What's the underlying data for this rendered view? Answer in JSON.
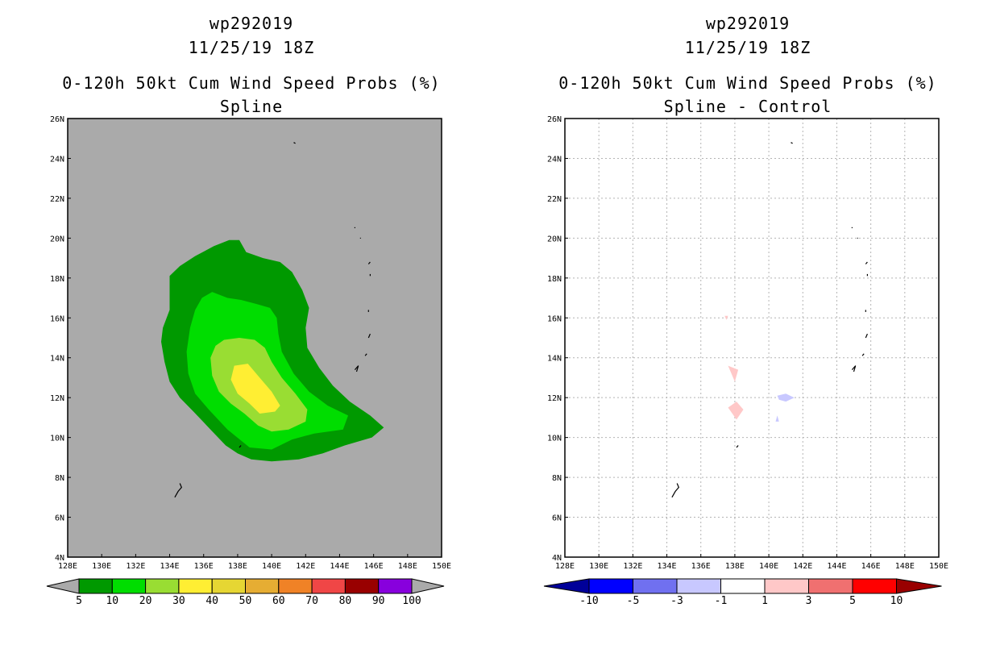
{
  "panels": [
    {
      "storm_id": "wp292019",
      "datetime": "11/25/19 18Z",
      "title": "0-120h 50kt Cum Wind Speed Probs (%)",
      "subtitle": "Spline"
    },
    {
      "storm_id": "wp292019",
      "datetime": "11/25/19 18Z",
      "title": "0-120h 50kt Cum Wind Speed Probs (%)",
      "subtitle": "Spline - Control"
    }
  ],
  "colors": {
    "background_land_sea": "#aaaaaa",
    "frame": "#000000",
    "grid": "#b4b4b4"
  },
  "chart_data": [
    {
      "type": "contour",
      "title": "0-120h 50kt Cum Wind Speed Probs (%)",
      "subtitle": "Spline",
      "xlim": [
        128,
        150
      ],
      "ylim": [
        4,
        26
      ],
      "x_ticks": [
        128,
        130,
        132,
        134,
        136,
        138,
        140,
        142,
        144,
        146,
        148,
        150
      ],
      "x_tick_labels": [
        "128E",
        "130E",
        "132E",
        "134E",
        "136E",
        "138E",
        "140E",
        "142E",
        "144E",
        "146E",
        "148E",
        "150E"
      ],
      "y_ticks": [
        4,
        6,
        8,
        10,
        12,
        14,
        16,
        18,
        20,
        22,
        24,
        26
      ],
      "y_tick_labels": [
        "4N",
        "6N",
        "8N",
        "10N",
        "12N",
        "14N",
        "16N",
        "18N",
        "20N",
        "22N",
        "24N",
        "26N"
      ],
      "grid": false,
      "contours": [
        {
          "level": 5,
          "color": "#009900",
          "lonlat": [
            [
              138.1,
              19.9
            ],
            [
              138.5,
              19.3
            ],
            [
              139.5,
              19.0
            ],
            [
              140.5,
              18.8
            ],
            [
              141.2,
              18.3
            ],
            [
              141.8,
              17.4
            ],
            [
              142.2,
              16.5
            ],
            [
              142.0,
              15.5
            ],
            [
              142.1,
              14.5
            ],
            [
              142.8,
              13.5
            ],
            [
              143.6,
              12.6
            ],
            [
              144.6,
              11.8
            ],
            [
              145.8,
              11.1
            ],
            [
              146.6,
              10.5
            ],
            [
              145.9,
              10.0
            ],
            [
              144.3,
              9.6
            ],
            [
              143.0,
              9.2
            ],
            [
              141.6,
              8.9
            ],
            [
              140.0,
              8.8
            ],
            [
              138.8,
              8.9
            ],
            [
              138.0,
              9.2
            ],
            [
              137.3,
              9.6
            ],
            [
              136.4,
              10.4
            ],
            [
              135.4,
              11.3
            ],
            [
              134.6,
              12.0
            ],
            [
              134.0,
              12.8
            ],
            [
              133.7,
              13.8
            ],
            [
              133.5,
              14.8
            ],
            [
              133.6,
              15.5
            ],
            [
              134.0,
              16.4
            ],
            [
              134.0,
              17.3
            ],
            [
              134.0,
              18.1
            ],
            [
              134.6,
              18.6
            ],
            [
              135.5,
              19.1
            ],
            [
              136.6,
              19.6
            ],
            [
              137.5,
              19.9
            ]
          ]
        },
        {
          "level": 10,
          "color": "#00dd00",
          "lonlat": [
            [
              136.5,
              17.3
            ],
            [
              137.4,
              17.0
            ],
            [
              138.2,
              16.9
            ],
            [
              139.1,
              16.7
            ],
            [
              139.9,
              16.5
            ],
            [
              140.3,
              16.0
            ],
            [
              140.4,
              15.2
            ],
            [
              140.6,
              14.3
            ],
            [
              141.3,
              13.2
            ],
            [
              142.2,
              12.3
            ],
            [
              143.3,
              11.6
            ],
            [
              144.5,
              11.1
            ],
            [
              144.2,
              10.4
            ],
            [
              142.5,
              10.2
            ],
            [
              141.2,
              9.9
            ],
            [
              140.0,
              9.4
            ],
            [
              138.7,
              9.5
            ],
            [
              137.4,
              10.4
            ],
            [
              136.3,
              11.4
            ],
            [
              135.5,
              12.2
            ],
            [
              135.1,
              13.2
            ],
            [
              135.0,
              14.3
            ],
            [
              135.2,
              15.5
            ],
            [
              135.5,
              16.4
            ],
            [
              135.9,
              17.0
            ]
          ]
        },
        {
          "level": 20,
          "color": "#99dd33",
          "lonlat": [
            [
              137.2,
              14.9
            ],
            [
              138.1,
              15.0
            ],
            [
              139.0,
              14.9
            ],
            [
              139.6,
              14.5
            ],
            [
              140.0,
              13.8
            ],
            [
              140.6,
              13.0
            ],
            [
              141.4,
              12.2
            ],
            [
              142.1,
              11.4
            ],
            [
              142.0,
              10.8
            ],
            [
              141.0,
              10.4
            ],
            [
              140.0,
              10.3
            ],
            [
              139.2,
              10.6
            ],
            [
              138.4,
              11.2
            ],
            [
              137.6,
              11.7
            ],
            [
              136.9,
              12.3
            ],
            [
              136.5,
              13.1
            ],
            [
              136.4,
              14.0
            ],
            [
              136.7,
              14.6
            ]
          ]
        },
        {
          "level": 30,
          "color": "#ffee33",
          "lonlat": [
            [
              137.8,
              13.6
            ],
            [
              138.6,
              13.7
            ],
            [
              139.3,
              13.0
            ],
            [
              140.0,
              12.3
            ],
            [
              140.5,
              11.6
            ],
            [
              140.2,
              11.3
            ],
            [
              139.3,
              11.2
            ],
            [
              138.7,
              11.7
            ],
            [
              138.0,
              12.2
            ],
            [
              137.6,
              12.9
            ]
          ]
        }
      ]
    },
    {
      "type": "contour",
      "title": "0-120h 50kt Cum Wind Speed Probs (%)",
      "subtitle": "Spline - Control",
      "xlim": [
        128,
        150
      ],
      "ylim": [
        4,
        26
      ],
      "x_ticks": [
        128,
        130,
        132,
        134,
        136,
        138,
        140,
        142,
        144,
        146,
        148,
        150
      ],
      "x_tick_labels": [
        "128E",
        "130E",
        "132E",
        "134E",
        "136E",
        "138E",
        "140E",
        "142E",
        "144E",
        "146E",
        "148E",
        "150E"
      ],
      "y_ticks": [
        4,
        6,
        8,
        10,
        12,
        14,
        16,
        18,
        20,
        22,
        24,
        26
      ],
      "y_tick_labels": [
        "4N",
        "6N",
        "8N",
        "10N",
        "12N",
        "14N",
        "16N",
        "18N",
        "20N",
        "22N",
        "24N",
        "26N"
      ],
      "grid": true,
      "contours": [
        {
          "level": 1,
          "color": "#ffc8c8",
          "lonlat": [
            [
              137.6,
              13.6
            ],
            [
              138.2,
              13.4
            ],
            [
              138.0,
              12.8
            ]
          ]
        },
        {
          "level": 1,
          "color": "#ffc8c8",
          "lonlat": [
            [
              137.6,
              11.5
            ],
            [
              138.1,
              11.8
            ],
            [
              138.5,
              11.4
            ],
            [
              138.1,
              10.9
            ]
          ]
        },
        {
          "level": 1,
          "color": "#ffc8c8",
          "lonlat": [
            [
              137.4,
              16.1
            ],
            [
              137.6,
              16.1
            ],
            [
              137.5,
              15.9
            ]
          ]
        },
        {
          "level": -1,
          "color": "#c8c8ff",
          "lonlat": [
            [
              140.5,
              12.1
            ],
            [
              141.0,
              12.2
            ],
            [
              141.5,
              12.0
            ],
            [
              141.0,
              11.8
            ],
            [
              140.6,
              11.9
            ]
          ]
        },
        {
          "level": -1,
          "color": "#c8c8ff",
          "lonlat": [
            [
              140.5,
              11.1
            ],
            [
              140.6,
              10.8
            ],
            [
              140.4,
              10.8
            ]
          ]
        }
      ]
    }
  ],
  "colorbars": [
    {
      "labels": [
        "5",
        "10",
        "20",
        "30",
        "40",
        "50",
        "60",
        "70",
        "80",
        "90",
        "100"
      ],
      "end_low_color": "#aaaaaa",
      "end_high_color": "#aaaaaa",
      "colors": [
        "#009900",
        "#00dd00",
        "#99dd33",
        "#ffee33",
        "#e6d633",
        "#e6ad33",
        "#f08226",
        "#f04646",
        "#990000",
        "#8800dd"
      ]
    },
    {
      "labels": [
        "-10",
        "-5",
        "-3",
        "-1",
        "1",
        "3",
        "5",
        "10"
      ],
      "end_low_color": "#000099",
      "end_high_color": "#990000",
      "colors": [
        "#0000ff",
        "#7070f0",
        "#c8c8ff",
        "#ffffff",
        "#ffc8c8",
        "#f07070",
        "#ff0000"
      ]
    }
  ],
  "islands": [
    [
      [
        134.3,
        7.0
      ],
      [
        134.5,
        7.3
      ],
      [
        134.7,
        7.5
      ],
      [
        134.6,
        7.7
      ]
    ],
    [
      [
        138.1,
        9.5
      ],
      [
        138.2,
        9.6
      ]
    ],
    [
      [
        141.3,
        24.8
      ],
      [
        141.4,
        24.75
      ]
    ],
    [
      [
        145.0,
        13.3
      ],
      [
        145.1,
        13.6
      ],
      [
        144.9,
        13.4
      ]
    ],
    [
      [
        145.5,
        14.1
      ],
      [
        145.6,
        14.2
      ]
    ],
    [
      [
        145.7,
        15.0
      ],
      [
        145.8,
        15.2
      ]
    ],
    [
      [
        145.7,
        16.3
      ],
      [
        145.7,
        16.4
      ]
    ],
    [
      [
        145.8,
        17.6
      ],
      [
        145.8,
        17.6
      ]
    ],
    [
      [
        145.8,
        18.1
      ],
      [
        145.8,
        18.2
      ]
    ],
    [
      [
        145.7,
        18.7
      ],
      [
        145.8,
        18.8
      ]
    ],
    [
      [
        144.9,
        20.5
      ],
      [
        144.9,
        20.55
      ]
    ],
    [
      [
        145.2,
        20.0
      ],
      [
        145.25,
        20.0
      ]
    ]
  ]
}
